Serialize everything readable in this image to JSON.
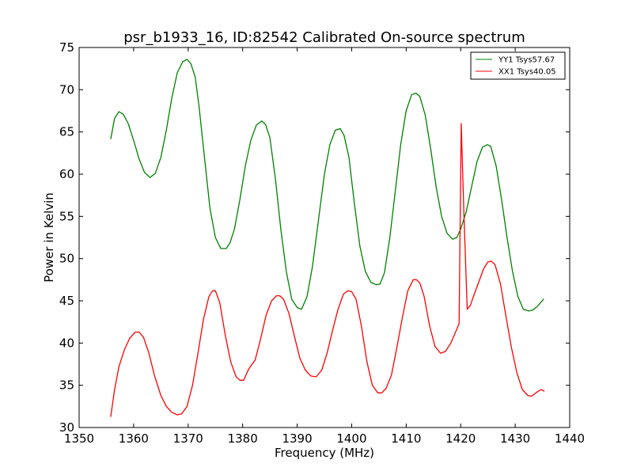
{
  "chart_data": {
    "type": "line",
    "title": "psr_b1933_16, ID:82542 Calibrated On-source spectrum",
    "xlabel": "Frequency (MHz)",
    "ylabel": "Power in Kelvin",
    "xlim": [
      1350,
      1440
    ],
    "ylim": [
      30,
      75
    ],
    "xticks": [
      1350,
      1360,
      1370,
      1380,
      1390,
      1400,
      1410,
      1420,
      1430,
      1440
    ],
    "yticks": [
      30,
      35,
      40,
      45,
      50,
      55,
      60,
      65,
      70,
      75
    ],
    "grid": false,
    "legend_position": "top-right",
    "series": [
      {
        "name": "YY1 Tsys57.67",
        "color": "#008000",
        "x": [
          1355.8,
          1356.5,
          1357.3,
          1358.1,
          1359.0,
          1360.0,
          1361.0,
          1362.0,
          1363.0,
          1364.0,
          1365.0,
          1366.0,
          1367.0,
          1368.0,
          1369.0,
          1369.8,
          1370.5,
          1371.3,
          1372.0,
          1373.0,
          1374.0,
          1375.0,
          1376.0,
          1377.0,
          1377.7,
          1378.5,
          1379.5,
          1380.5,
          1381.5,
          1382.5,
          1383.5,
          1384.2,
          1385.0,
          1386.0,
          1387.0,
          1388.0,
          1389.0,
          1390.0,
          1390.8,
          1391.8,
          1392.8,
          1394.0,
          1395.0,
          1396.0,
          1397.0,
          1397.9,
          1398.6,
          1399.5,
          1400.5,
          1401.5,
          1402.5,
          1403.5,
          1404.5,
          1405.2,
          1406.0,
          1407.0,
          1408.0,
          1409.0,
          1410.0,
          1411.0,
          1411.8,
          1412.5,
          1413.5,
          1414.5,
          1415.5,
          1416.5,
          1417.5,
          1418.5,
          1419.3,
          1420.0,
          1421.0,
          1422.0,
          1423.0,
          1424.0,
          1424.9,
          1425.5,
          1426.5,
          1427.5,
          1428.5,
          1429.5,
          1430.5,
          1431.5,
          1432.5,
          1433.2,
          1434.0,
          1435.2
        ],
        "y": [
          64.2,
          66.6,
          67.4,
          67.1,
          66.0,
          64.0,
          61.8,
          60.2,
          59.6,
          60.1,
          62.0,
          65.2,
          69.0,
          72.0,
          73.3,
          73.6,
          73.1,
          71.5,
          68.0,
          62.0,
          56.0,
          52.5,
          51.2,
          51.2,
          51.9,
          53.5,
          57.0,
          61.0,
          64.0,
          65.8,
          66.3,
          65.9,
          64.3,
          59.5,
          53.5,
          48.5,
          45.2,
          44.2,
          44.0,
          45.5,
          49.0,
          55.0,
          60.0,
          63.5,
          65.2,
          65.4,
          64.6,
          62.0,
          56.5,
          51.5,
          48.5,
          47.2,
          46.9,
          47.0,
          48.3,
          52.5,
          58.0,
          63.5,
          67.5,
          69.4,
          69.6,
          69.2,
          67.0,
          63.0,
          58.5,
          55.0,
          53.0,
          52.3,
          52.5,
          53.5,
          55.5,
          58.5,
          61.5,
          63.2,
          63.5,
          63.3,
          61.0,
          57.0,
          52.5,
          48.5,
          45.5,
          44.0,
          43.8,
          43.9,
          44.3,
          45.2
        ]
      },
      {
        "name": "XX1 Tsys40.05",
        "color": "#ff0000",
        "x": [
          1355.8,
          1356.5,
          1357.3,
          1358.3,
          1359.3,
          1360.3,
          1361.0,
          1361.8,
          1362.8,
          1363.8,
          1365.0,
          1366.0,
          1367.0,
          1368.0,
          1368.8,
          1369.8,
          1370.8,
          1371.8,
          1372.8,
          1373.8,
          1374.5,
          1375.0,
          1375.8,
          1376.8,
          1377.8,
          1378.8,
          1379.5,
          1380.2,
          1381.0,
          1381.5,
          1382.3,
          1383.3,
          1384.3,
          1385.3,
          1386.2,
          1386.8,
          1387.5,
          1388.5,
          1389.5,
          1390.5,
          1391.5,
          1392.5,
          1393.5,
          1394.5,
          1395.5,
          1396.5,
          1397.5,
          1398.5,
          1399.3,
          1400.0,
          1400.8,
          1401.8,
          1402.8,
          1403.8,
          1404.8,
          1405.5,
          1406.3,
          1407.3,
          1408.3,
          1409.3,
          1410.3,
          1411.3,
          1411.9,
          1412.5,
          1413.3,
          1414.3,
          1415.3,
          1416.3,
          1417.2,
          1418.2,
          1419.2,
          1419.7,
          1420.1,
          1420.6,
          1421.2,
          1421.8,
          1422.5,
          1423.3,
          1424.2,
          1425.0,
          1425.6,
          1426.3,
          1427.3,
          1428.3,
          1429.3,
          1430.3,
          1431.3,
          1432.3,
          1433.0,
          1434.0,
          1434.8,
          1435.3
        ],
        "y": [
          31.3,
          34.5,
          37.2,
          39.2,
          40.6,
          41.3,
          41.3,
          40.7,
          38.8,
          36.2,
          33.8,
          32.5,
          31.8,
          31.5,
          31.6,
          32.5,
          35.0,
          38.8,
          42.8,
          45.5,
          46.2,
          46.2,
          44.8,
          41.0,
          37.8,
          36.0,
          35.6,
          35.6,
          36.8,
          37.3,
          38.0,
          40.5,
          43.3,
          45.0,
          45.6,
          45.6,
          45.2,
          43.5,
          40.8,
          38.2,
          36.8,
          36.1,
          36.0,
          36.8,
          38.8,
          41.5,
          44.0,
          45.8,
          46.2,
          46.1,
          45.2,
          42.0,
          37.8,
          35.0,
          34.1,
          34.1,
          34.6,
          36.2,
          39.5,
          43.0,
          46.2,
          47.5,
          47.5,
          47.1,
          45.5,
          42.0,
          39.6,
          38.8,
          39.0,
          40.0,
          41.5,
          42.3,
          66.0,
          55.0,
          44.0,
          44.5,
          45.8,
          47.2,
          48.8,
          49.6,
          49.7,
          49.3,
          47.0,
          43.2,
          39.5,
          36.5,
          34.5,
          33.8,
          33.7,
          34.2,
          34.5,
          34.3
        ]
      }
    ]
  }
}
